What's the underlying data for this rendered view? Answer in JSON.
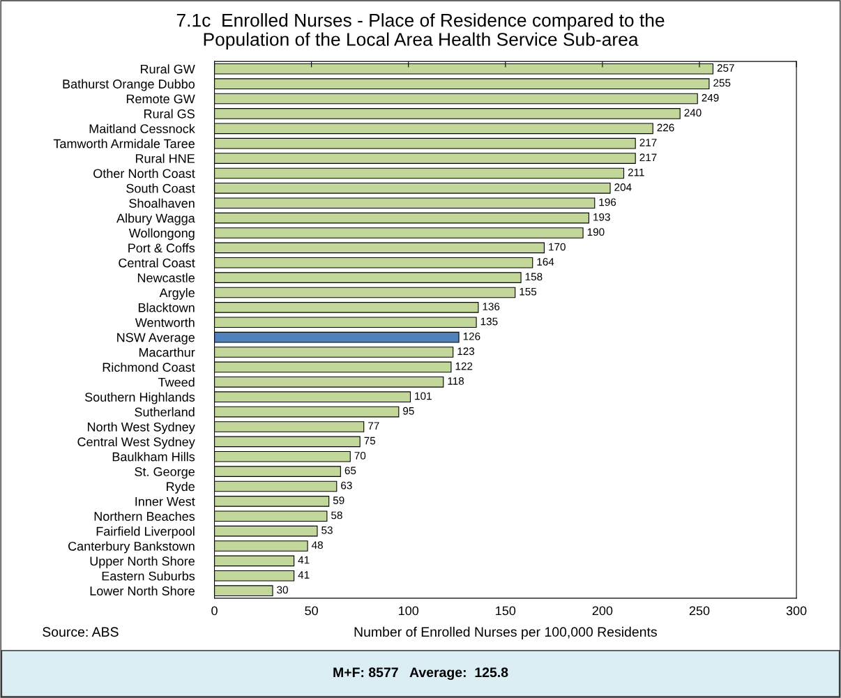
{
  "chart_data": {
    "type": "bar",
    "orientation": "horizontal",
    "title": "7.1c  Enrolled Nurses - Place of Residence compared to the\nPopulation of the Local Area Health Service Sub-area",
    "xlabel": "Number of Enrolled Nurses per 100,000 Residents",
    "categories": [
      "Rural GW",
      "Bathurst Orange Dubbo",
      "Remote GW",
      "Rural GS",
      "Maitland Cessnock",
      "Tamworth Armidale Taree",
      "Rural HNE",
      "Other North Coast",
      "South Coast",
      "Shoalhaven",
      "Albury Wagga",
      "Wollongong",
      "Port & Coffs",
      "Central Coast",
      "Newcastle",
      "Argyle",
      "Blacktown",
      "Wentworth",
      "NSW Average",
      "Macarthur",
      "Richmond Coast",
      "Tweed",
      "Southern Highlands",
      "Sutherland",
      "North West Sydney",
      "Central West Sydney",
      "Baulkham Hills",
      "St. George",
      "Ryde",
      "Inner West",
      "Northern Beaches",
      "Fairfield Liverpool",
      "Canterbury Bankstown",
      "Upper North Shore",
      "Eastern Suburbs",
      "Lower North Shore"
    ],
    "values": [
      257,
      255,
      249,
      240,
      226,
      217,
      217,
      211,
      204,
      196,
      193,
      190,
      170,
      164,
      158,
      155,
      136,
      135,
      126,
      123,
      122,
      118,
      101,
      95,
      77,
      75,
      70,
      65,
      63,
      59,
      58,
      53,
      48,
      41,
      41,
      30
    ],
    "colors": [
      "#c4d79b",
      "#c4d79b",
      "#c4d79b",
      "#c4d79b",
      "#c4d79b",
      "#c4d79b",
      "#c4d79b",
      "#c4d79b",
      "#c4d79b",
      "#c4d79b",
      "#c4d79b",
      "#c4d79b",
      "#c4d79b",
      "#c4d79b",
      "#c4d79b",
      "#c4d79b",
      "#c4d79b",
      "#c4d79b",
      "#4f81bd",
      "#c4d79b",
      "#c4d79b",
      "#c4d79b",
      "#c4d79b",
      "#c4d79b",
      "#c4d79b",
      "#c4d79b",
      "#c4d79b",
      "#c4d79b",
      "#c4d79b",
      "#c4d79b",
      "#c4d79b",
      "#c4d79b",
      "#c4d79b",
      "#c4d79b",
      "#c4d79b",
      "#c4d79b"
    ],
    "xlim": [
      0,
      300
    ],
    "xticks": [
      0,
      50,
      100,
      150,
      200,
      250,
      300
    ],
    "data_labels": true,
    "grid": false,
    "legend": false,
    "annotations": [
      "Source: ABS",
      "M+F: 8577   Average:  125.8"
    ]
  }
}
